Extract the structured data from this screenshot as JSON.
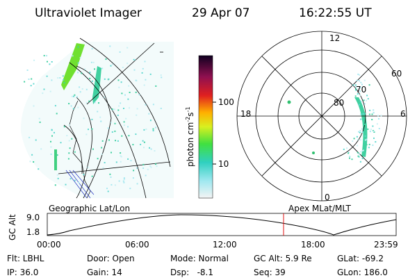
{
  "header": {
    "title": "Ultraviolet Imager",
    "date": "29 Apr 07",
    "time": "16:22:55 UT"
  },
  "colorbar": {
    "label": {
      "unit": "photon cm",
      "exp1": "-2",
      "unit2": "s",
      "exp2": "-1"
    },
    "ticks": [
      "100",
      "10"
    ]
  },
  "polar": {
    "labels": {
      "top": "12",
      "left": "18",
      "right": "6",
      "bottom": "0",
      "lat60": "60",
      "lat70": "70",
      "lat80": "80"
    }
  },
  "strip": {
    "left_label": "Geographic Lat/Lon",
    "right_label": "Apex MLat/MLT",
    "y_label": "GC Alt",
    "yticks": [
      "9.0",
      "1.8"
    ],
    "xticks": [
      "00:00",
      "06:00",
      "12:00",
      "18:00",
      "23:59"
    ]
  },
  "info": {
    "rows": [
      [
        "Flt: LBHL",
        "Door: Open",
        "Mode: Normal",
        "GC Alt: 5.9 Re",
        "GLat: -69.2"
      ],
      [
        "IP: 36.0",
        "Gain: 14",
        "Dsp:   -8.1",
        "Seq: 39",
        "GLon: 186.0"
      ]
    ]
  }
}
